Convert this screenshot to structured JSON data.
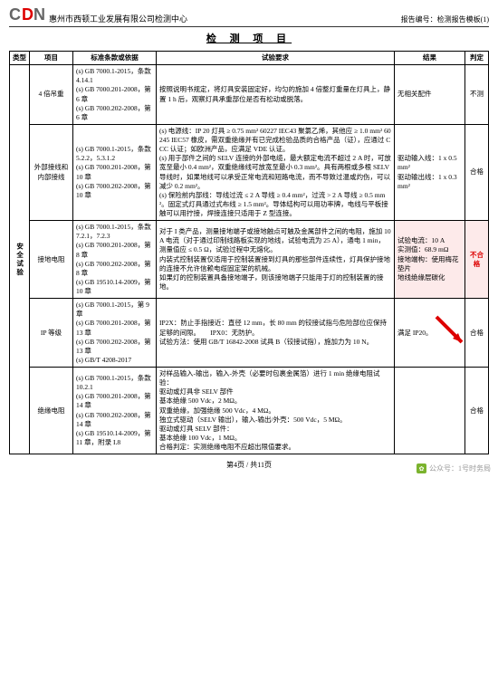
{
  "header": {
    "logo_c": "C",
    "logo_d": "D",
    "logo_n": "N",
    "company": "惠州市西顿工业发展有限公司检测中心",
    "report_no_label": "报告编号：检测报告模板(1)"
  },
  "section_title": "检 测 项 目",
  "columns": {
    "type": "类型",
    "item": "项目",
    "basis": "标准条款或依据",
    "req": "试验要求",
    "result": "结果",
    "judge": "判定"
  },
  "category_label": "安全试验",
  "rows": [
    {
      "item": "4 倍吊重",
      "basis": "(s) GB 7000.1-2015，条款 4.14.1\n(s) GB 7000.201-2008，第 6 章\n(s) GB 7000.202-2008，第 6 章",
      "req": "按照说明书规定，将灯具安装固定好，均匀的施加 4 倍整灯重量在灯具上，静置 1 h 后，观察灯具承重部位是否有松动或脱落。",
      "result": "无相关配件",
      "judge": "不测",
      "highlight": false
    },
    {
      "item": "外部接线和内部接线",
      "basis": "(s) GB 7000.1-2015，条款 5.2.2，5.3.1.2\n(s) GB 7000.201-2008，第 10 章\n(s) GB 7000.202-2008，第 10 章",
      "req": "(s) 电源线：IP 20 灯具 ≥ 0.75 mm² 60227 IEC43 聚氯乙烯，其他应 ≥ 1.0 mm² 60245 IEC57 橡皮，需双重绝缘并有已完成检验品质的合格产品（证），应通过 CCC 认证；如欧洲产品，应满足 VDE 认证。\n(s) 用于部件之间的 SELV 连接的外部电缆，最大额定电流不超过 2 A 时，可放宽至最小 0.4 mm²，双重绝缘线可放宽至最小 0.3 mm²。具有两根或多根 SELV 导线时，如果地线可以承受正常电流和短路电流，而不导致过温或灼伤，可以减少 0.2 mm²。\n(s) 保险前内部线：导线过流 ≤ 2 A 导线 ≥ 0.4 mm²，过流 > 2 A 导线 ≥ 0.5 mm²。固定式灯具通过式布线 ≥ 1.5 mm²。导体结构可以用功率牌，电线与平板接触可以用拧接，焊接连接只适用于 Z 型连接。",
      "result": "驱动输入线：1 x 0.5 mm²\n驱动输出线：1 x 0.3 mm²",
      "judge": "合格",
      "highlight": false
    },
    {
      "item": "接地电阻",
      "basis": "(s) GB 7000.1-2015，条款 7.2.1，7.2.3\n(s) GB 7000.201-2008，第 8 章\n(s) GB 7000.202-2008，第 8 章\n(s) GB 19510.14-2009，第 10 章",
      "req": "对于 I 类产品，测量接地端子或接地触点可触及金属部件之间的电阻，施加 10 A 电流（对于通过印制线路板实现的地线，试验电流为 25 A），通电 1 min，测量值应 ≤ 0.5 Ω，试验过程中无熔化。\n内装式控制装置仅适用于控制装置接到灯具的那些部件连续性，灯具保护接地的连接不允许信赖电缆固定架的机械。\n如果灯的控制装置具备接地端子，则该接地端子只能用于灯的控制装置的接地。",
      "result": "试验电流：10 A\n实测值：68.9 mΩ\n接地端构：使用梅花垫片\n地线绝缘层碳化",
      "judge": "不合格",
      "highlight": true
    },
    {
      "item": "IP 等级",
      "basis": "(s) GB 7000.1-2015，第 9 章\n(s) GB 7000.201-2008，第 13 章\n(s) GB 7000.202-2008，第 13 章\n(s) GB/T 4208-2017",
      "req": "IP2X：防止手指接近：直径 12 mm，长 80 mm 的铰接试指与危险部位应保持足够的间隙。　　IPX0：无防护。\n试验方法：使用 GB/T 16842-2008 试具 B（铰接试指），施加力为 10 N。",
      "result": "满足 IP20。",
      "judge": "合格",
      "highlight": false
    },
    {
      "item": "绝缘电阻",
      "basis": "(s) GB 7000.1-2015，条款 10.2.1\n(s) GB 7000.201-2008，第 14 章\n(s) GB 7000.202-2008，第 14 章\n(s) GB 19510.14-2009，第 11 章，附录 I.8",
      "req": "对样品输入-输出，输入-外壳（必要时包裹金属箔）进行 1 min 绝缘电阻试验：\n驱动或灯具非 SELV 部件\n基本绝缘 500 Vdc，2 MΩ。\n双重绝缘，加强绝缘 500 Vdc，4 MΩ。\n独立式驱动（SELV 输出），输入-输出/外壳：500 Vdc，5 MΩ。\n驱动或灯具 SELV 部件：\n基本绝缘 100 Vdc，1 MΩ。\n合格判定：实测绝缘电阻不应超出限值要求。",
      "result": "",
      "judge": "合格",
      "highlight": false
    }
  ],
  "footer": "第4页 / 共11页",
  "watermark": "公众号：1号时务局",
  "arrow_color": "#d00"
}
